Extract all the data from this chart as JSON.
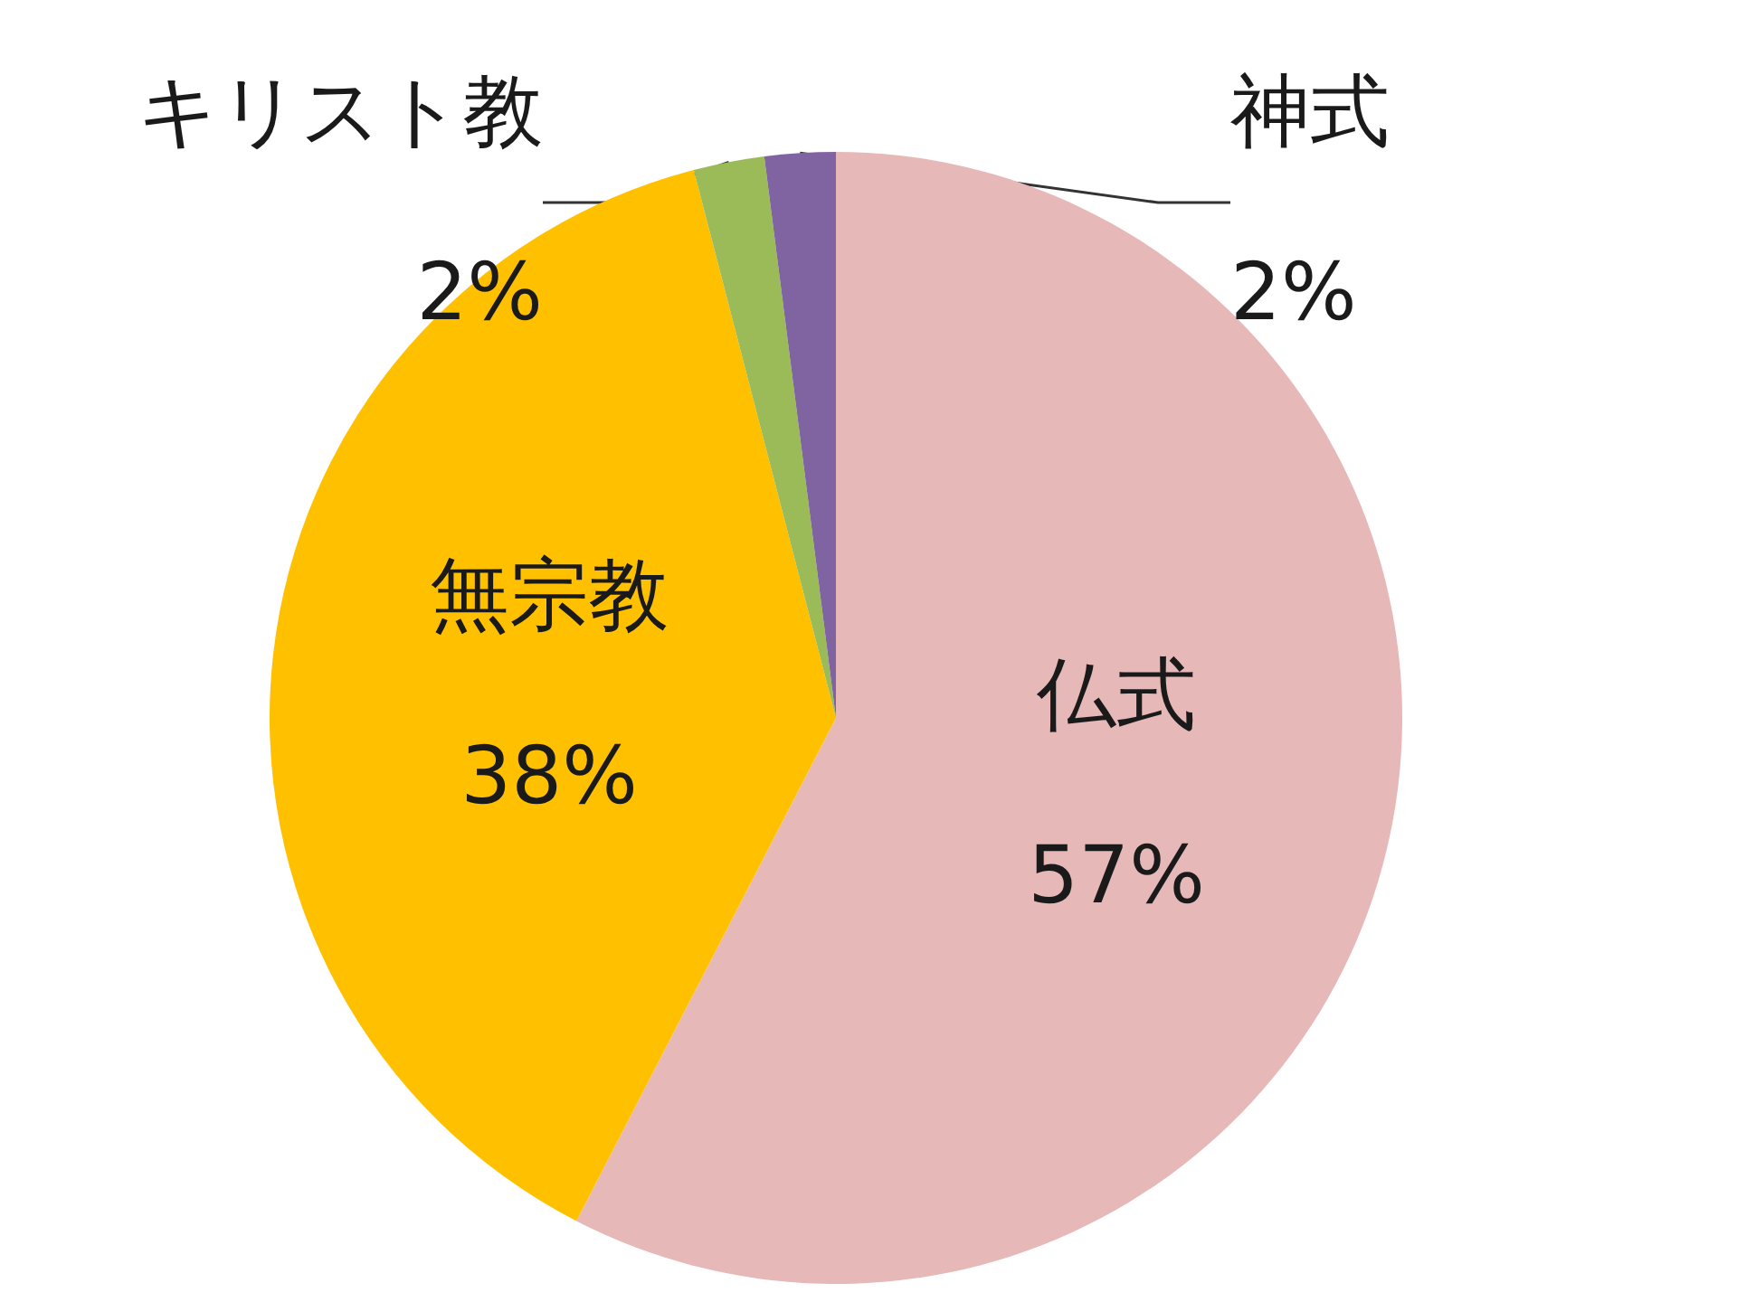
{
  "chart_data": {
    "type": "pie",
    "categories": [
      "仏式",
      "無宗教",
      "キリスト教",
      "神式"
    ],
    "values": [
      57,
      38,
      2,
      2
    ],
    "value_labels": [
      "57%",
      "38%",
      "2%",
      "2%"
    ],
    "colors": [
      "#e6b9b8",
      "#ffc000",
      "#9bbb59",
      "#8064a2"
    ],
    "legend": false
  }
}
